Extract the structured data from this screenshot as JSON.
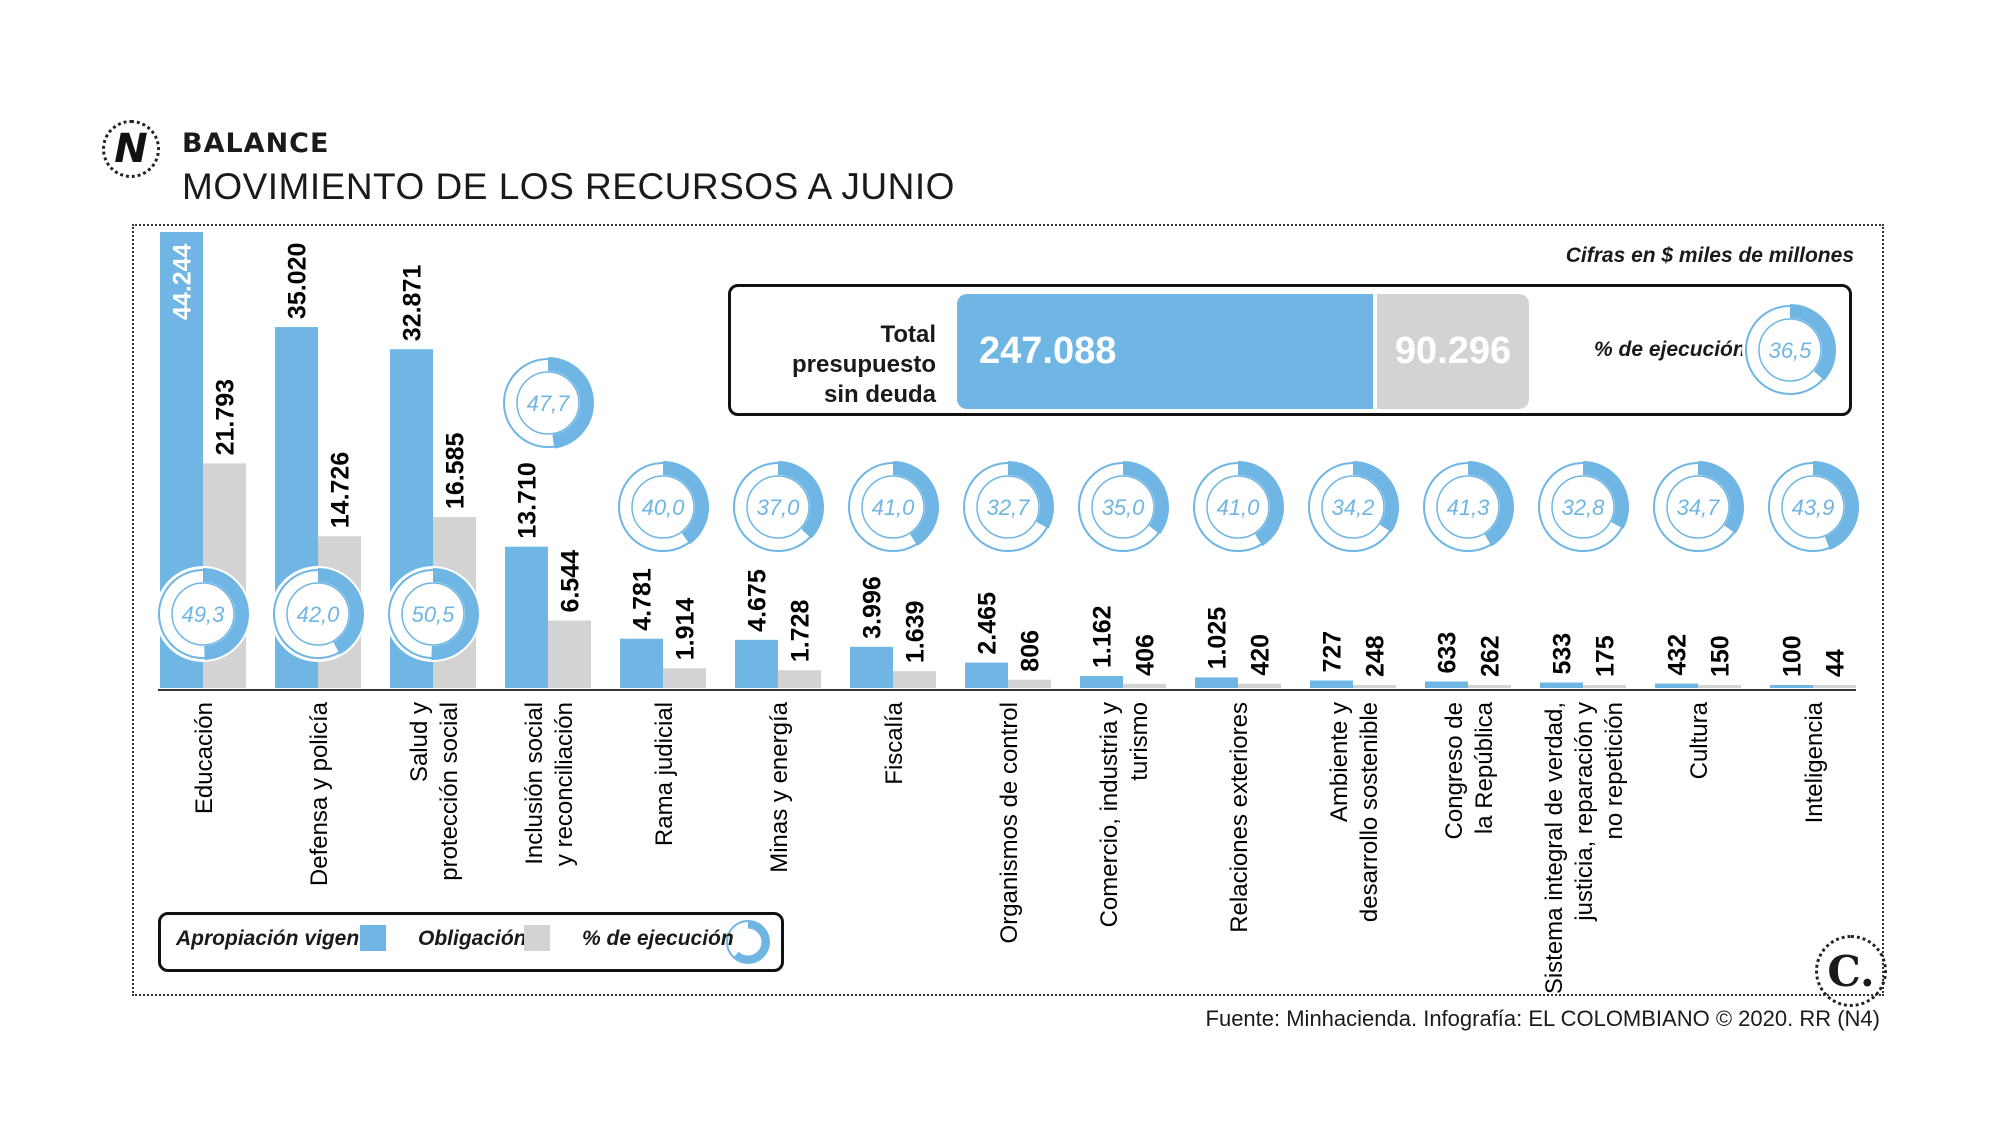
{
  "header": {
    "kicker": "BALANCE",
    "title": "MOVIMIENTO DE LOS RECURSOS A JUNIO",
    "logo_letter": "N"
  },
  "units_note": "Cifras en $ miles de millones",
  "total": {
    "label_line1": "Total presupuesto",
    "label_line2": "sin deuda",
    "apropiacion": "247.088",
    "obligacion": "90.296",
    "pct_label": "% de ejecución",
    "pct": "36,5"
  },
  "legend": {
    "apropiacion": "Apropiación vigente",
    "obligacion": "Obligación",
    "pct": "% de ejecución"
  },
  "source": "Fuente: Minhacienda. Infografía: EL COLOMBIANO © 2020. RR (N4)",
  "footer_logo": "C.",
  "colors": {
    "apropiacion": "#6fb6e4",
    "obligacion": "#d3d3d3",
    "pct_ring": "#6fb6e4"
  },
  "chart_data": {
    "type": "bar",
    "categories": [
      [
        "Educación"
      ],
      [
        "Defensa y policía"
      ],
      [
        "Salud y",
        "protección social"
      ],
      [
        "Inclusión social",
        "y reconciliación"
      ],
      [
        "Rama judicial"
      ],
      [
        "Minas y energía"
      ],
      [
        "Fiscalía"
      ],
      [
        "Organismos de control"
      ],
      [
        "Comercio, industria y",
        "turismo"
      ],
      [
        "Relaciones exteriores"
      ],
      [
        "Ambiente y",
        "desarrollo sostenible"
      ],
      [
        "Congreso de",
        "la República"
      ],
      [
        "Sistema integral de verdad,",
        "justicia, reparación y",
        "no repetición"
      ],
      [
        "Cultura"
      ],
      [
        "Inteligencia"
      ]
    ],
    "series": [
      {
        "name": "Apropiación vigente",
        "values": [
          44244,
          35020,
          32871,
          13710,
          4781,
          4675,
          3996,
          2465,
          1162,
          1025,
          727,
          633,
          533,
          432,
          100
        ],
        "labels": [
          "44.244",
          "35.020",
          "32.871",
          "13.710",
          "4.781",
          "4.675",
          "3.996",
          "2.465",
          "1.162",
          "1.025",
          "727",
          "633",
          "533",
          "432",
          "100"
        ]
      },
      {
        "name": "Obligación",
        "values": [
          21793,
          14726,
          16585,
          6544,
          1914,
          1728,
          1639,
          806,
          406,
          420,
          248,
          262,
          175,
          150,
          44
        ],
        "labels": [
          "21.793",
          "14.726",
          "16.585",
          "6.544",
          "1.914",
          "1.728",
          "1.639",
          "806",
          "406",
          "420",
          "248",
          "262",
          "175",
          "150",
          "44"
        ]
      }
    ],
    "pct_ejecucion": [
      49.3,
      42.0,
      50.5,
      47.7,
      40.0,
      37.0,
      41.0,
      32.7,
      35.0,
      41.0,
      34.2,
      41.3,
      32.8,
      34.7,
      43.9
    ],
    "pct_labels": [
      "49,3",
      "42,0",
      "50,5",
      "47,7",
      "40,0",
      "37,0",
      "41,0",
      "32,7",
      "35,0",
      "41,0",
      "34,2",
      "41,3",
      "32,8",
      "34,7",
      "43,9"
    ],
    "ylim": [
      0,
      44244
    ],
    "grid": false,
    "legend_position": "bottom-left"
  }
}
